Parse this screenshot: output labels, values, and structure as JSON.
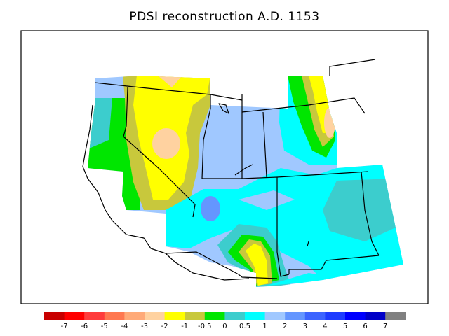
{
  "title": "PDSI reconstruction A.D. 1153",
  "colorbar": {
    "colors": [
      "#c80000",
      "#ff0000",
      "#ff3c3c",
      "#ff7850",
      "#ffaa78",
      "#ffd2a0",
      "#ffff00",
      "#c8c83c",
      "#00e600",
      "#3ccdcd",
      "#00ffff",
      "#a0c8ff",
      "#6496ff",
      "#3c64ff",
      "#1e3cff",
      "#0000ff",
      "#0000c8",
      "#808080"
    ],
    "labels": [
      "-7",
      "-6",
      "-5",
      "-4",
      "-3",
      "-2",
      "-1",
      "-0.5",
      "0",
      "0.5",
      "1",
      "2",
      "3",
      "4",
      "5",
      "6",
      "7"
    ]
  }
}
